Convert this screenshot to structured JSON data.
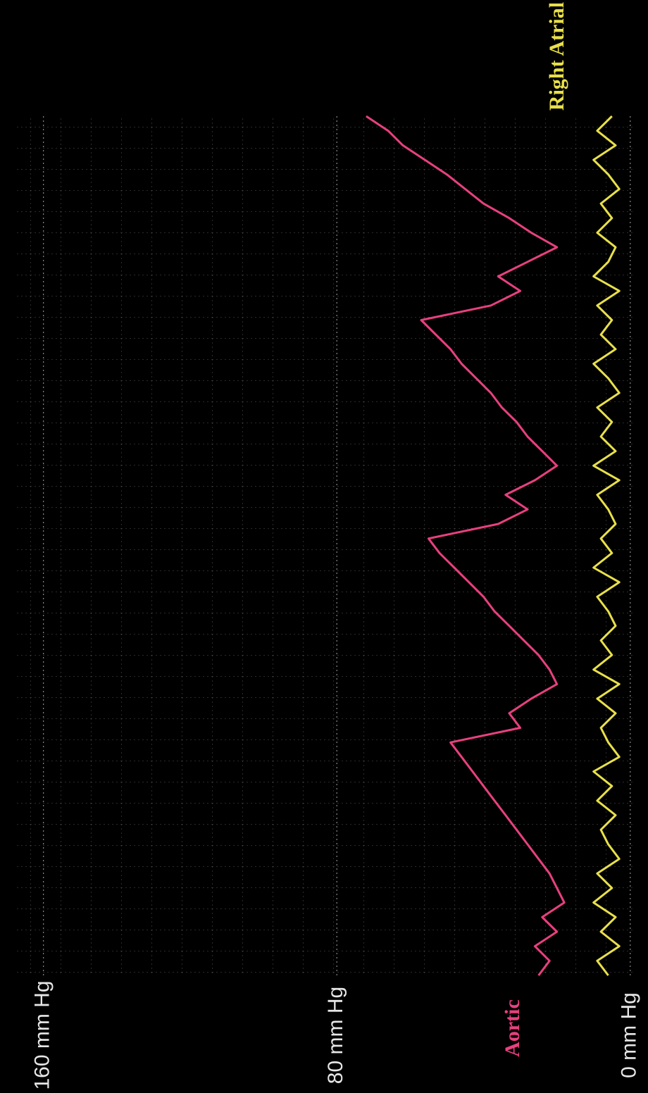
{
  "chart_data": {
    "type": "line",
    "ylim": [
      -1,
      168
    ],
    "yticks": [
      {
        "value": 0,
        "label": "0 mm Hg"
      },
      {
        "value": 80,
        "label": "80 mm Hg"
      },
      {
        "value": 160,
        "label": "160 mm Hg"
      }
    ],
    "grid": true,
    "series": [
      {
        "name": "Aortic",
        "color": "#e8407f",
        "values": [
          72,
          66,
          62,
          56,
          50,
          45,
          40,
          33,
          27,
          20,
          28,
          36,
          30,
          38,
          57,
          53,
          49,
          46,
          42,
          38,
          35,
          31,
          28,
          24,
          20,
          26,
          34,
          28,
          36,
          55,
          52,
          48,
          44,
          40,
          37,
          33,
          29,
          25,
          22,
          20,
          27,
          33,
          30,
          49,
          46,
          43,
          40,
          37,
          34,
          31,
          28,
          25,
          22,
          20,
          18,
          24,
          20,
          26,
          22,
          25
        ]
      },
      {
        "name": "Right Atrial",
        "color": "#e8e04a",
        "values": [
          5,
          9,
          4,
          10,
          6,
          3,
          8,
          5,
          9,
          4,
          6,
          10,
          3,
          9,
          5,
          8,
          4,
          10,
          6,
          3,
          9,
          5,
          8,
          4,
          10,
          3,
          9,
          6,
          4,
          8,
          5,
          10,
          3,
          9,
          6,
          4,
          8,
          5,
          10,
          3,
          9,
          4,
          8,
          6,
          3,
          10,
          5,
          9,
          4,
          8,
          6,
          3,
          9,
          5,
          10,
          4,
          8,
          3,
          9,
          6
        ]
      }
    ]
  }
}
